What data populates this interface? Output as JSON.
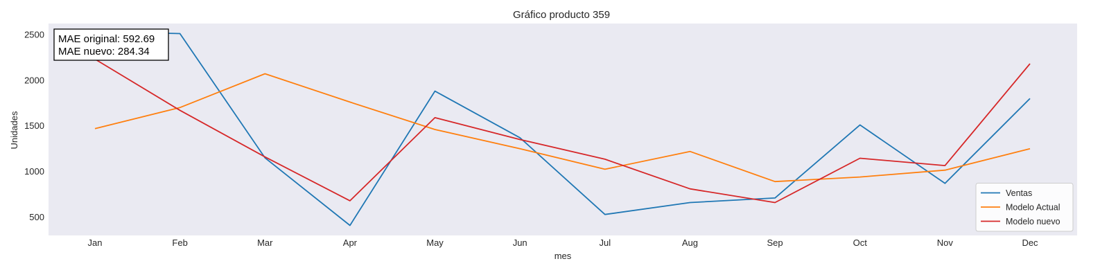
{
  "chart_data": {
    "type": "line",
    "title": "Gráfico producto 359",
    "xlabel": "mes",
    "ylabel": "Unidades",
    "categories": [
      "Jan",
      "Feb",
      "Mar",
      "Apr",
      "May",
      "Jun",
      "Jul",
      "Aug",
      "Sep",
      "Oct",
      "Nov",
      "Dec"
    ],
    "yticks": [
      500,
      1000,
      1500,
      2000,
      2500
    ],
    "ylim": [
      300,
      2620
    ],
    "grid": false,
    "legend_position": "lower-right",
    "background_color": "#eaeaf2",
    "series": [
      {
        "name": "Ventas",
        "color": "#1f77b4",
        "values": [
          2530,
          2510,
          1150,
          410,
          1880,
          1370,
          530,
          660,
          710,
          1510,
          870,
          1800
        ]
      },
      {
        "name": "Modelo Actual",
        "color": "#ff7f0e",
        "values": [
          1470,
          1700,
          2070,
          1760,
          1460,
          1250,
          1025,
          1220,
          890,
          940,
          1015,
          1250
        ]
      },
      {
        "name": "Modelo nuevo",
        "color": "#d62728",
        "values": [
          2230,
          1670,
          1160,
          680,
          1590,
          1350,
          1135,
          810,
          660,
          1145,
          1065,
          2180
        ]
      }
    ],
    "annotation": {
      "lines": [
        "MAE original: 592.69",
        "MAE nuevo: 284.34"
      ]
    }
  }
}
